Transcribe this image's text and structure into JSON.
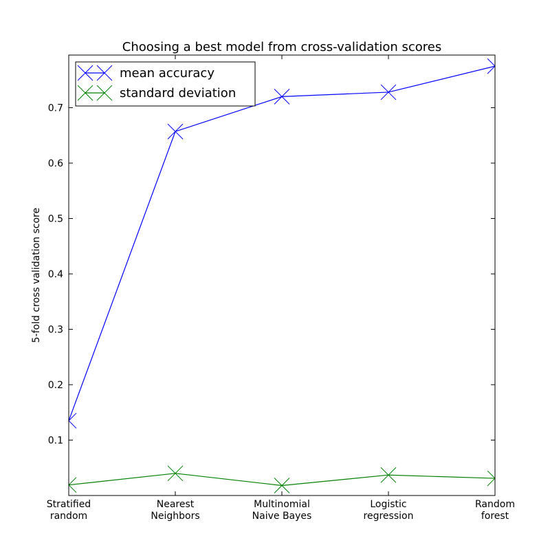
{
  "chart_data": {
    "type": "line",
    "title": "Choosing a best model from cross-validation scores",
    "xlabel": "",
    "ylabel": "5-fold cross validation score",
    "categories": [
      [
        "Stratified",
        "random"
      ],
      [
        "Nearest",
        "Neighbors"
      ],
      [
        "Multinomial",
        "Naive Bayes"
      ],
      [
        "Logistic",
        "regression"
      ],
      [
        "Random",
        "forest"
      ]
    ],
    "yticks": [
      0.1,
      0.2,
      0.3,
      0.4,
      0.5,
      0.6,
      0.7
    ],
    "ylim": [
      0.0,
      0.795
    ],
    "grid": false,
    "legend_position": "top-left",
    "series": [
      {
        "name": "mean accuracy",
        "color": "#0000ff",
        "marker": "x",
        "values": [
          0.135,
          0.657,
          0.72,
          0.728,
          0.775
        ]
      },
      {
        "name": "standard deviation",
        "color": "#008000",
        "marker": "x",
        "values": [
          0.019,
          0.04,
          0.018,
          0.037,
          0.031
        ]
      }
    ]
  }
}
